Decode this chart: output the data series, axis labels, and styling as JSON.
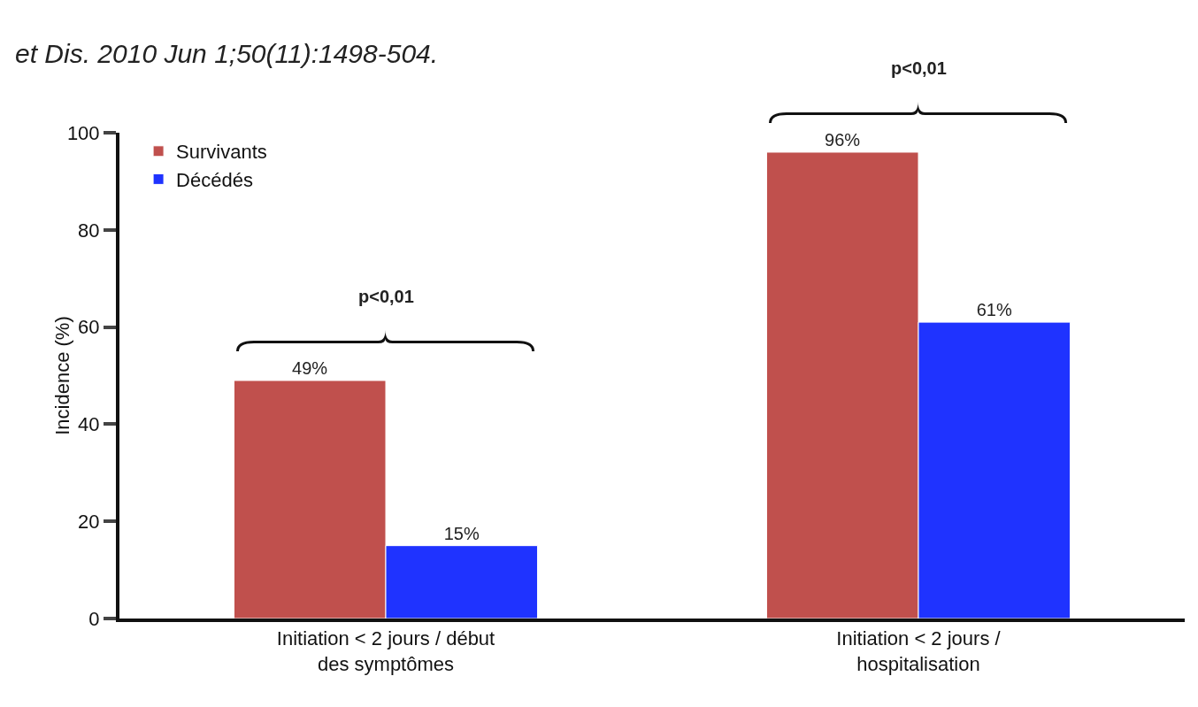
{
  "chart_data": {
    "type": "bar",
    "ylabel": "Incidence (%)",
    "categories": [
      "Initiation < 2 jours / début des symptômes",
      "Initiation < 2 jours / hospitalisation"
    ],
    "series": [
      {
        "name": "Survivants",
        "color": "#c0504d",
        "values": [
          49,
          96
        ],
        "value_labels": [
          "49%",
          "96%"
        ]
      },
      {
        "name": "Décédés",
        "color": "#1f33ff",
        "values": [
          15,
          61
        ],
        "value_labels": [
          "15%",
          "61%"
        ]
      }
    ],
    "ylim": [
      0,
      100
    ],
    "yticks": [
      0,
      20,
      40,
      60,
      80,
      100
    ],
    "grid": false,
    "legend": "top left",
    "annotations": [
      "et Dis. 2010 Jun 1;50(11):1498-504.",
      "p<0,01",
      "p<0,01"
    ]
  }
}
